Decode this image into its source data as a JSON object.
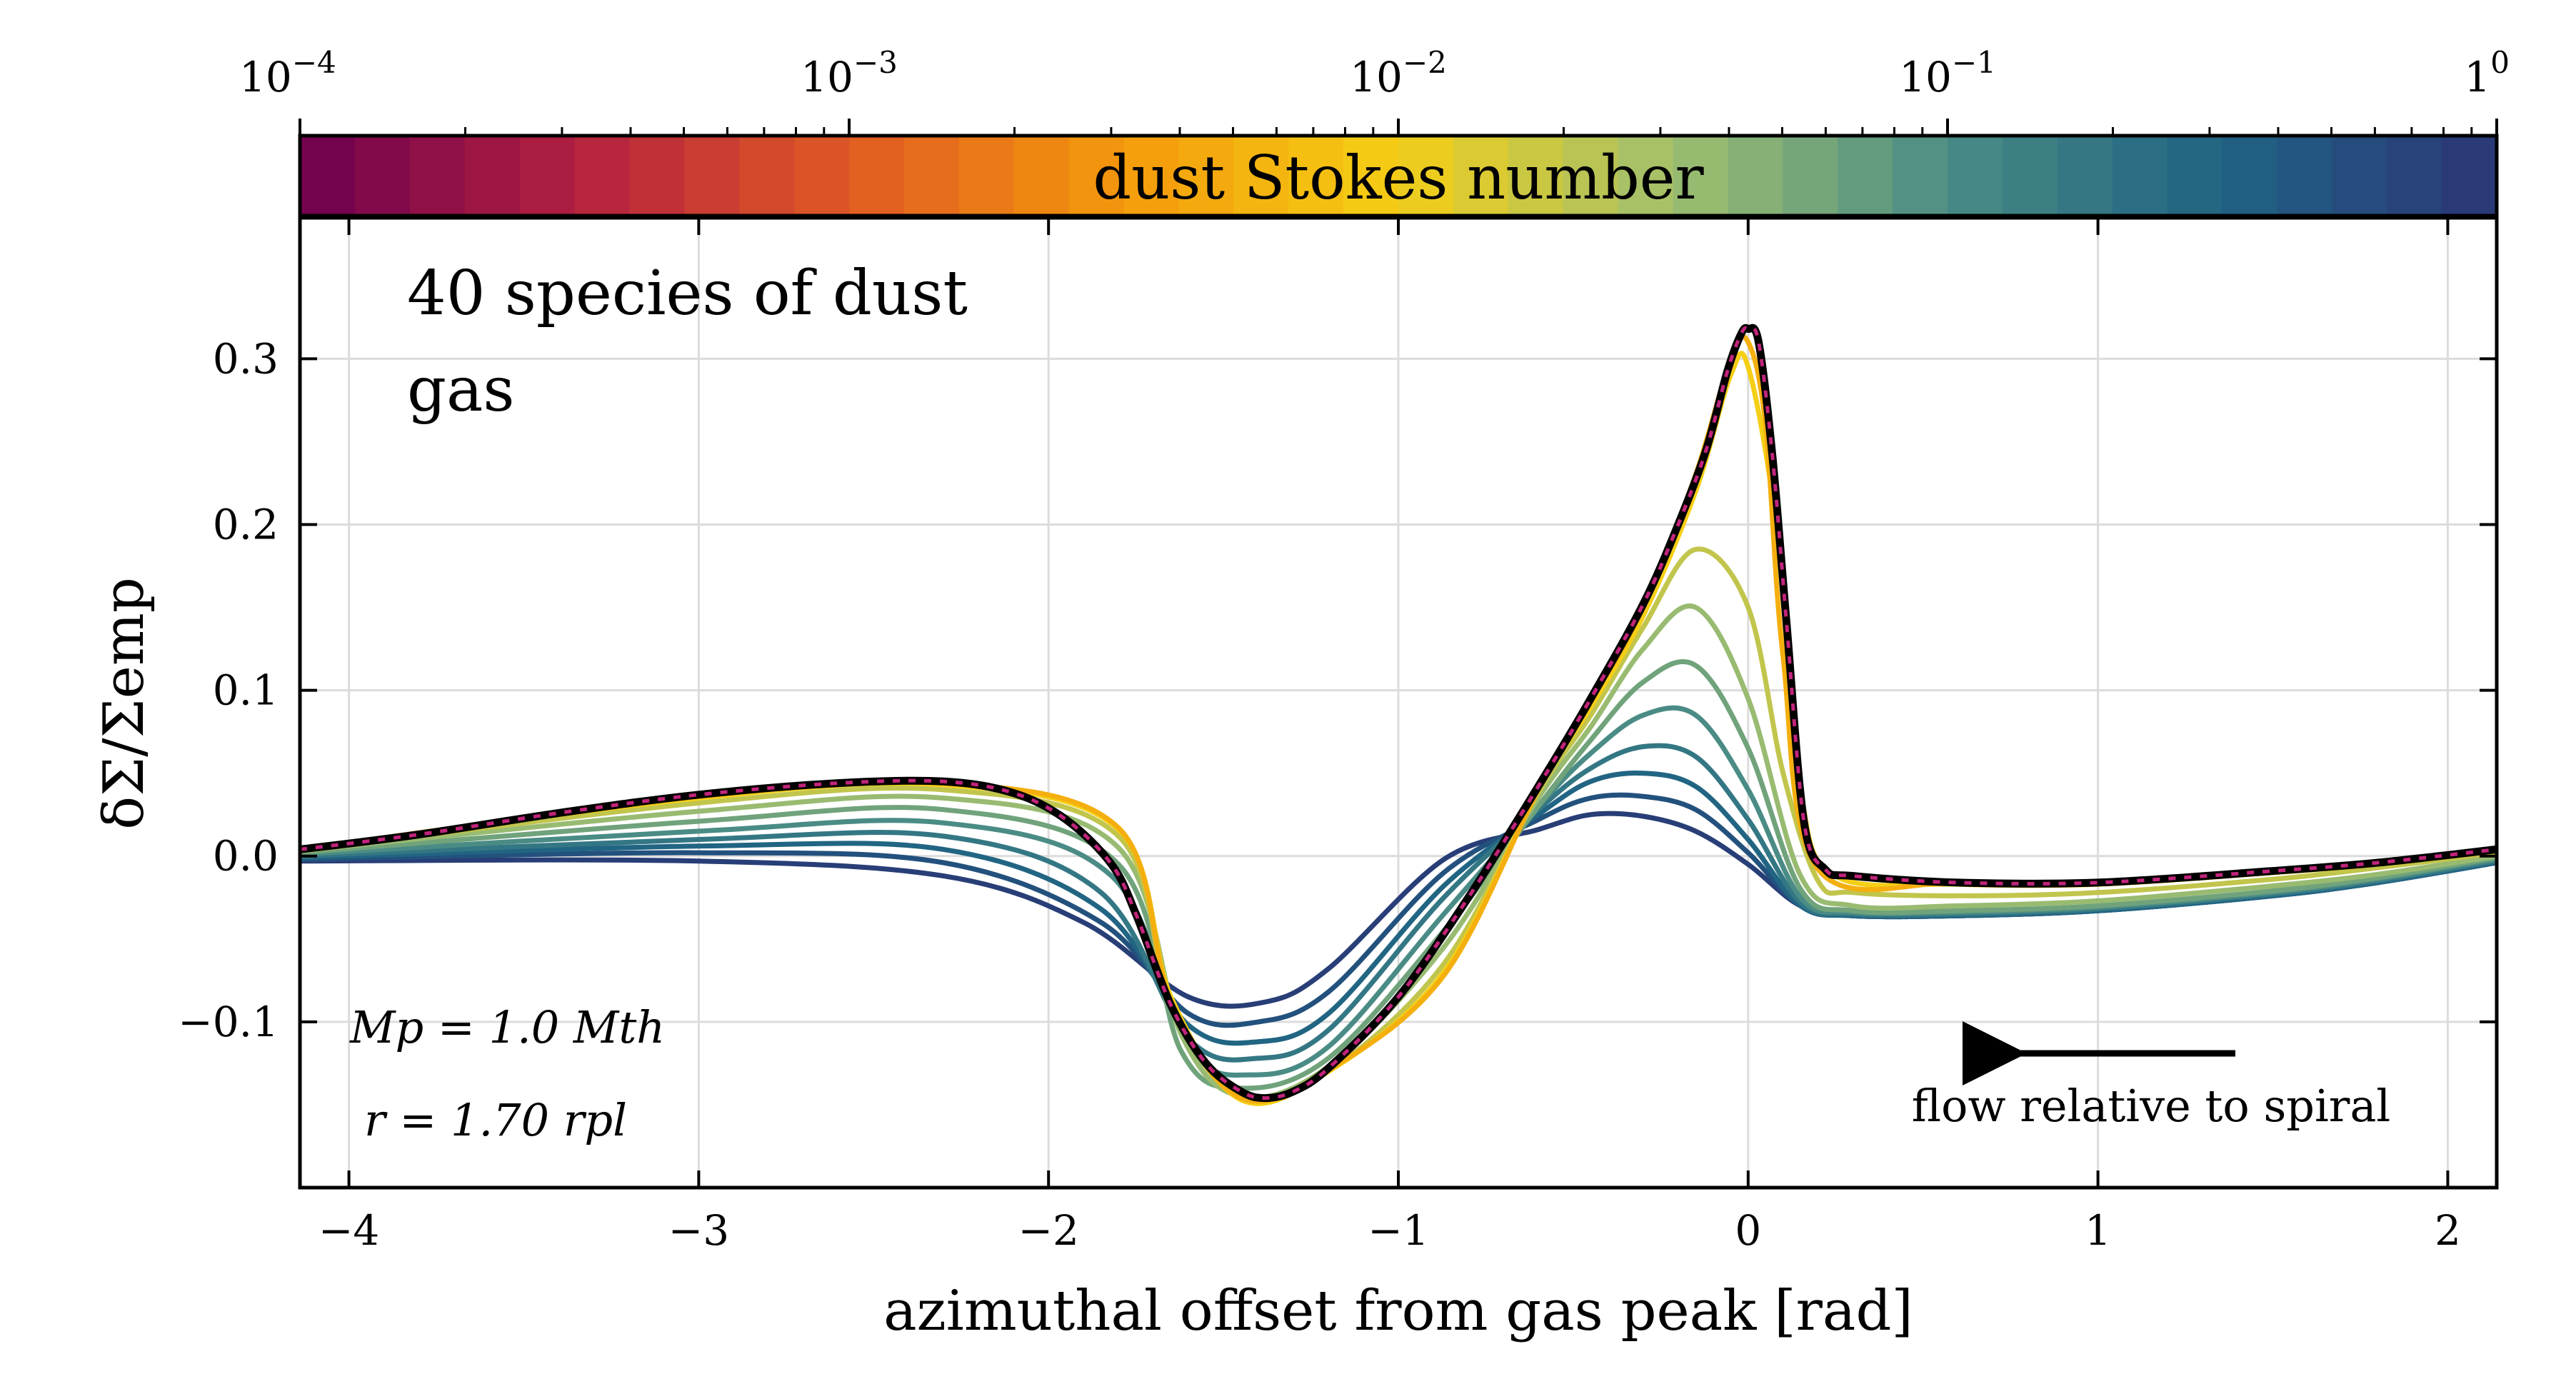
{
  "chart_data": {
    "type": "line",
    "xlabel": "azimuthal offset from gas peak [rad]",
    "ylabel": "δΣ/Σemp",
    "xlim": [
      -4.14,
      2.14
    ],
    "ylim": [
      -0.2,
      0.385
    ],
    "xticks": [
      {
        "value": -4,
        "label": "−4"
      },
      {
        "value": -3,
        "label": "−3"
      },
      {
        "value": -2,
        "label": "−2"
      },
      {
        "value": -1,
        "label": "−1"
      },
      {
        "value": 0,
        "label": "0"
      },
      {
        "value": 1,
        "label": "1"
      },
      {
        "value": 2,
        "label": "2"
      }
    ],
    "yticks": [
      {
        "value": -0.1,
        "label": "−0.1"
      },
      {
        "value": 0.0,
        "label": "0.0"
      },
      {
        "value": 0.1,
        "label": "0.1"
      },
      {
        "value": 0.2,
        "label": "0.2"
      },
      {
        "value": 0.3,
        "label": "0.3"
      }
    ],
    "grid": true,
    "legend": {
      "placement": "top-left",
      "entries": [
        "40 species of dust",
        "gas"
      ]
    },
    "annotations": {
      "mass": "Mp = 1.0 Mth",
      "radius": "r = 1.70 rpl",
      "arrow_label": "flow relative to spiral"
    },
    "colorbar": {
      "label": "dust Stokes number",
      "scale": "log",
      "range": [
        0.0001,
        1
      ],
      "ticks": [
        {
          "exp": -4,
          "base": "10",
          "power": "−4"
        },
        {
          "exp": -3,
          "base": "10",
          "power": "−3"
        },
        {
          "exp": -2,
          "base": "10",
          "power": "−2"
        },
        {
          "exp": -1,
          "base": "10",
          "power": "−1"
        },
        {
          "exp": 0,
          "base": "1",
          "power": "0"
        }
      ],
      "colormap": [
        "#6d0050",
        "#b2203f",
        "#e05a24",
        "#f49a0a",
        "#f5cf16",
        "#9fbf6f",
        "#4a8c85",
        "#1f6383",
        "#2a3574"
      ],
      "n_bins": 40
    },
    "gas_line_color": "#000000",
    "gas_dash_color": "#c0247a",
    "gas_curve": {
      "x": [
        -4.14,
        -3.8,
        -3.4,
        -3.0,
        -2.6,
        -2.3,
        -2.1,
        -1.95,
        -1.82,
        -1.75,
        -1.65,
        -1.55,
        -1.45,
        -1.38,
        -1.3,
        -1.2,
        -1.0,
        -0.8,
        -0.6,
        -0.45,
        -0.3,
        -0.2,
        -0.12,
        -0.06,
        -0.02,
        0.0,
        0.03,
        0.07,
        0.11,
        0.16,
        0.22,
        0.3,
        0.6,
        1.0,
        1.5,
        1.8,
        2.14
      ],
      "y": [
        0.004,
        0.013,
        0.026,
        0.037,
        0.044,
        0.045,
        0.038,
        0.022,
        -0.005,
        -0.035,
        -0.09,
        -0.125,
        -0.142,
        -0.146,
        -0.142,
        -0.128,
        -0.085,
        -0.025,
        0.042,
        0.095,
        0.152,
        0.2,
        0.245,
        0.292,
        0.315,
        0.318,
        0.31,
        0.24,
        0.14,
        0.02,
        -0.008,
        -0.012,
        -0.016,
        -0.016,
        -0.009,
        -0.004,
        0.004
      ]
    },
    "dust_series": [
      {
        "St": 0.8,
        "x": [
          -4.14,
          -3.0,
          -2.3,
          -1.9,
          -1.6,
          -1.38,
          -1.2,
          -0.87,
          -0.6,
          -0.45,
          -0.3,
          -0.15,
          0.0,
          0.15,
          0.3,
          0.6,
          1.0,
          1.5,
          1.8,
          2.14
        ],
        "y": [
          -0.003,
          -0.003,
          -0.012,
          -0.04,
          -0.085,
          -0.088,
          -0.068,
          -0.002,
          0.016,
          0.025,
          0.024,
          0.015,
          -0.005,
          -0.03,
          -0.036,
          -0.036,
          -0.033,
          -0.024,
          -0.016,
          -0.004
        ]
      },
      {
        "St": 0.5,
        "x": [
          -4.14,
          -3.0,
          -2.3,
          -1.85,
          -1.6,
          -1.4,
          -1.2,
          -0.87,
          -0.6,
          -0.45,
          -0.3,
          -0.15,
          0.0,
          0.15,
          0.3,
          0.6,
          1.0,
          1.5,
          1.8,
          2.14
        ],
        "y": [
          -0.002,
          0.002,
          -0.004,
          -0.04,
          -0.095,
          -0.1,
          -0.082,
          -0.01,
          0.022,
          0.035,
          0.036,
          0.028,
          0.002,
          -0.03,
          -0.036,
          -0.036,
          -0.033,
          -0.024,
          -0.016,
          -0.004
        ]
      },
      {
        "St": 0.3,
        "x": [
          -4.14,
          -3.0,
          -2.3,
          -1.85,
          -1.6,
          -1.4,
          -1.2,
          -0.87,
          -0.6,
          -0.45,
          -0.3,
          -0.15,
          0.0,
          0.15,
          0.3,
          0.6,
          1.0,
          1.5,
          1.8,
          2.14
        ],
        "y": [
          -0.001,
          0.006,
          0.004,
          -0.032,
          -0.102,
          -0.112,
          -0.095,
          -0.018,
          0.025,
          0.045,
          0.05,
          0.042,
          0.01,
          -0.03,
          -0.036,
          -0.036,
          -0.033,
          -0.024,
          -0.016,
          -0.004
        ]
      },
      {
        "St": 0.18,
        "x": [
          -4.14,
          -3.0,
          -2.3,
          -1.85,
          -1.6,
          -1.4,
          -1.2,
          -0.87,
          -0.6,
          -0.45,
          -0.3,
          -0.15,
          0.0,
          0.15,
          0.3,
          0.6,
          1.0,
          1.5,
          1.8,
          2.14
        ],
        "y": [
          0.0,
          0.01,
          0.012,
          -0.022,
          -0.11,
          -0.122,
          -0.105,
          -0.025,
          0.028,
          0.053,
          0.066,
          0.06,
          0.022,
          -0.028,
          -0.035,
          -0.035,
          -0.032,
          -0.023,
          -0.015,
          -0.003
        ]
      },
      {
        "St": 0.1,
        "x": [
          -4.14,
          -3.0,
          -2.3,
          -1.82,
          -1.6,
          -1.42,
          -1.2,
          -0.87,
          -0.6,
          -0.45,
          -0.3,
          -0.15,
          0.0,
          0.15,
          0.3,
          0.6,
          1.0,
          1.5,
          1.8,
          2.14
        ],
        "y": [
          0.001,
          0.015,
          0.02,
          -0.012,
          -0.115,
          -0.132,
          -0.115,
          -0.035,
          0.03,
          0.062,
          0.085,
          0.085,
          0.04,
          -0.025,
          -0.034,
          -0.034,
          -0.031,
          -0.022,
          -0.014,
          -0.002
        ]
      },
      {
        "St": 0.06,
        "x": [
          -4.14,
          -3.0,
          -2.3,
          -1.8,
          -1.62,
          -1.45,
          -1.2,
          -0.87,
          -0.6,
          -0.45,
          -0.3,
          -0.15,
          0.0,
          0.15,
          0.3,
          0.6,
          1.0,
          1.5,
          1.8,
          2.14
        ],
        "y": [
          0.002,
          0.021,
          0.028,
          -0.005,
          -0.118,
          -0.14,
          -0.122,
          -0.045,
          0.03,
          0.07,
          0.105,
          0.115,
          0.065,
          -0.02,
          -0.033,
          -0.033,
          -0.03,
          -0.021,
          -0.013,
          -0.001
        ]
      },
      {
        "St": 0.035,
        "x": [
          -4.14,
          -3.0,
          -2.3,
          -1.8,
          -1.62,
          -1.45,
          -1.2,
          -0.87,
          -0.6,
          -0.45,
          -0.3,
          -0.15,
          0.0,
          0.15,
          0.3,
          0.6,
          1.0,
          1.5,
          1.8,
          2.14
        ],
        "y": [
          0.003,
          0.027,
          0.035,
          0.005,
          -0.108,
          -0.145,
          -0.127,
          -0.055,
          0.035,
          0.078,
          0.125,
          0.15,
          0.095,
          -0.012,
          -0.03,
          -0.03,
          -0.027,
          -0.018,
          -0.011,
          0.0
        ]
      },
      {
        "St": 0.02,
        "x": [
          -4.14,
          -3.0,
          -2.3,
          -1.8,
          -1.65,
          -1.45,
          -1.2,
          -0.87,
          -0.6,
          -0.45,
          -0.3,
          -0.15,
          0.0,
          0.1,
          0.2,
          0.3,
          0.6,
          1.0,
          1.5,
          1.8,
          2.14
        ],
        "y": [
          0.003,
          0.032,
          0.04,
          0.012,
          -0.09,
          -0.146,
          -0.13,
          -0.065,
          0.038,
          0.085,
          0.138,
          0.185,
          0.15,
          0.05,
          -0.015,
          -0.022,
          -0.024,
          -0.022,
          -0.014,
          -0.007,
          0.002
        ]
      },
      {
        "St": 0.01,
        "x": [
          -4.14,
          -3.0,
          -2.3,
          -1.8,
          -1.65,
          -1.45,
          -1.2,
          -0.87,
          -0.6,
          -0.45,
          -0.3,
          -0.15,
          -0.05,
          0.0,
          0.08,
          0.15,
          0.25,
          0.6,
          1.0,
          1.5,
          1.8,
          2.14
        ],
        "y": [
          0.004,
          0.035,
          0.043,
          0.016,
          -0.085,
          -0.147,
          -0.13,
          -0.07,
          0.04,
          0.09,
          0.145,
          0.22,
          0.29,
          0.295,
          0.2,
          0.04,
          -0.012,
          -0.017,
          -0.017,
          -0.01,
          -0.005,
          0.003
        ]
      },
      {
        "St": 0.005,
        "x": [
          -4.14,
          -3.0,
          -2.3,
          -1.8,
          -1.65,
          -1.45,
          -1.2,
          -0.87,
          -0.6,
          -0.45,
          -0.3,
          -0.15,
          -0.05,
          0.0,
          0.05,
          0.1,
          0.2,
          0.6,
          1.0,
          1.5,
          1.8,
          2.14
        ],
        "y": [
          0.004,
          0.036,
          0.044,
          0.017,
          -0.088,
          -0.146,
          -0.129,
          -0.072,
          0.04,
          0.093,
          0.15,
          0.23,
          0.3,
          0.31,
          0.26,
          0.12,
          -0.008,
          -0.016,
          -0.016,
          -0.009,
          -0.004,
          0.004
        ]
      }
    ]
  }
}
